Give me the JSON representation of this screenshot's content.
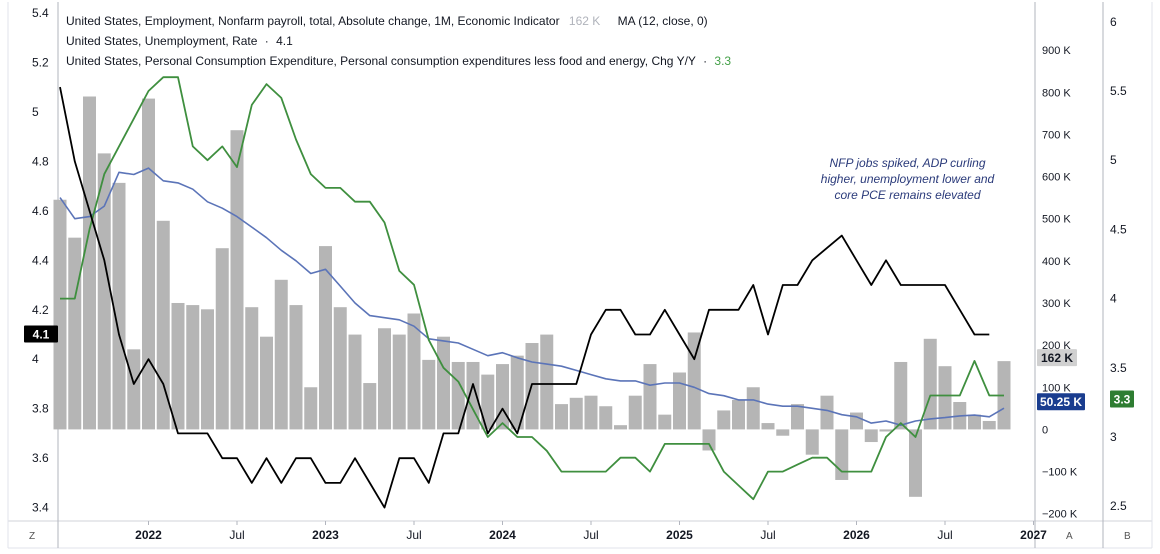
{
  "legend": {
    "nfp_label": "United States, Employment, Nonfarm payroll, total, Absolute change, 1M, Economic Indicator",
    "nfp_value": "162 K",
    "ma_label": "MA (12, close, 0)",
    "unemp_label": "United States, Unemployment, Rate",
    "unemp_value": "4.1",
    "pce_label": "United States, Personal Consumption Expenditure, Personal consumption expenditures less food and energy, Chg Y/Y",
    "pce_value": "3.3",
    "sep": "·"
  },
  "annotation": {
    "line1": "NFP jobs spiked, ADP curling",
    "line2": "higher, unemployment lower and",
    "line3": "core PCE remains elevated"
  },
  "corner": {
    "z": "Z",
    "a": "A",
    "b": "B"
  },
  "colors": {
    "nfp_bars": "#b5b5b5",
    "ma": "#5b74b8",
    "unemployment": "#000000",
    "pce": "#3f8f3f",
    "label_ma_bg": "#1a3d8f",
    "label_unemp_bg": "#000000",
    "label_pce_bg": "#2e7d32",
    "label_nfp_bg": "#d0d0d0"
  },
  "chart_data": {
    "type": "bar+line",
    "x_start": "2021-07",
    "x_ticks": [
      "2022",
      "Jul",
      "2023",
      "Jul",
      "2024",
      "Jul",
      "2025",
      "Jul",
      "2026",
      "Jul",
      "2027"
    ],
    "x_tick_months": [
      "2022-01",
      "2022-07",
      "2023-01",
      "2023-07",
      "2024-01",
      "2024-07",
      "2025-01",
      "2025-07",
      "2026-01",
      "2026-07",
      "2027-01"
    ],
    "left_axis": {
      "ticks": [
        "5.4",
        "5.2",
        "5",
        "4.8",
        "4.6",
        "4.4",
        "4.2",
        "4",
        "3.8",
        "3.6",
        "3.4"
      ],
      "range": [
        3.35,
        5.42
      ],
      "series": "Unemployment rate (%)"
    },
    "mid_axis": {
      "ticks": [
        "900 K",
        "800 K",
        "700 K",
        "600 K",
        "500 K",
        "400 K",
        "300 K",
        "200 K",
        "100 K",
        "0",
        "−100 K",
        "−200 K"
      ],
      "range": [
        -215,
        1000
      ],
      "series": "Nonfarm payroll change (K)"
    },
    "right_axis": {
      "ticks": [
        "6",
        "5.5",
        "5",
        "4.5",
        "4",
        "3.5",
        "3",
        "2.5"
      ],
      "range": [
        2.4,
        6.1
      ],
      "series": "Core PCE Y/Y (%)"
    },
    "nfp_bars": [
      {
        "month": "2021-07",
        "value": 545
      },
      {
        "month": "2021-08",
        "value": 455
      },
      {
        "month": "2021-09",
        "value": 790
      },
      {
        "month": "2021-10",
        "value": 655
      },
      {
        "month": "2021-11",
        "value": 585
      },
      {
        "month": "2021-12",
        "value": 190
      },
      {
        "month": "2022-01",
        "value": 785
      },
      {
        "month": "2022-02",
        "value": 495
      },
      {
        "month": "2022-03",
        "value": 300
      },
      {
        "month": "2022-04",
        "value": 295
      },
      {
        "month": "2022-05",
        "value": 285
      },
      {
        "month": "2022-06",
        "value": 430
      },
      {
        "month": "2022-07",
        "value": 710
      },
      {
        "month": "2022-08",
        "value": 290
      },
      {
        "month": "2022-09",
        "value": 220
      },
      {
        "month": "2022-10",
        "value": 355
      },
      {
        "month": "2022-11",
        "value": 295
      },
      {
        "month": "2022-12",
        "value": 100
      },
      {
        "month": "2023-01",
        "value": 435
      },
      {
        "month": "2023-02",
        "value": 290
      },
      {
        "month": "2023-03",
        "value": 225
      },
      {
        "month": "2023-04",
        "value": 110
      },
      {
        "month": "2023-05",
        "value": 240
      },
      {
        "month": "2023-06",
        "value": 225
      },
      {
        "month": "2023-07",
        "value": 275
      },
      {
        "month": "2023-08",
        "value": 165
      },
      {
        "month": "2023-09",
        "value": 220
      },
      {
        "month": "2023-10",
        "value": 160
      },
      {
        "month": "2023-11",
        "value": 160
      },
      {
        "month": "2023-12",
        "value": 130
      },
      {
        "month": "2024-01",
        "value": 155
      },
      {
        "month": "2024-02",
        "value": 175
      },
      {
        "month": "2024-03",
        "value": 205
      },
      {
        "month": "2024-04",
        "value": 225
      },
      {
        "month": "2024-05",
        "value": 60
      },
      {
        "month": "2024-06",
        "value": 75
      },
      {
        "month": "2024-07",
        "value": 80
      },
      {
        "month": "2024-08",
        "value": 55
      },
      {
        "month": "2024-09",
        "value": 10
      },
      {
        "month": "2024-10",
        "value": 80
      },
      {
        "month": "2024-11",
        "value": 155
      },
      {
        "month": "2024-12",
        "value": 35
      },
      {
        "month": "2025-01",
        "value": 135
      },
      {
        "month": "2025-02",
        "value": 230
      },
      {
        "month": "2025-03",
        "value": -50
      },
      {
        "month": "2025-04",
        "value": 45
      },
      {
        "month": "2025-05",
        "value": 70
      },
      {
        "month": "2025-06",
        "value": 100
      },
      {
        "month": "2025-07",
        "value": 15
      },
      {
        "month": "2025-08",
        "value": -15
      },
      {
        "month": "2025-09",
        "value": 60
      },
      {
        "month": "2025-10",
        "value": -60
      },
      {
        "month": "2025-11",
        "value": 80
      },
      {
        "month": "2025-12",
        "value": -120
      },
      {
        "month": "2026-01",
        "value": 40
      },
      {
        "month": "2026-02",
        "value": -30
      },
      {
        "month": "2026-03",
        "value": -5
      },
      {
        "month": "2026-04",
        "value": 160
      },
      {
        "month": "2026-05",
        "value": -160
      },
      {
        "month": "2026-06",
        "value": 215
      },
      {
        "month": "2026-07",
        "value": 150
      },
      {
        "month": "2026-08",
        "value": 65
      },
      {
        "month": "2026-09",
        "value": 35
      },
      {
        "month": "2026-10",
        "value": 20
      },
      {
        "month": "2026-11",
        "value": 162
      }
    ],
    "ma_line": [
      {
        "month": "2021-07",
        "value": 550
      },
      {
        "month": "2021-08",
        "value": 500
      },
      {
        "month": "2021-09",
        "value": 505
      },
      {
        "month": "2021-10",
        "value": 530
      },
      {
        "month": "2021-11",
        "value": 610
      },
      {
        "month": "2021-12",
        "value": 605
      },
      {
        "month": "2022-01",
        "value": 620
      },
      {
        "month": "2022-02",
        "value": 590
      },
      {
        "month": "2022-03",
        "value": 585
      },
      {
        "month": "2022-04",
        "value": 570
      },
      {
        "month": "2022-05",
        "value": 540
      },
      {
        "month": "2022-06",
        "value": 525
      },
      {
        "month": "2022-07",
        "value": 505
      },
      {
        "month": "2022-08",
        "value": 480
      },
      {
        "month": "2022-09",
        "value": 455
      },
      {
        "month": "2022-10",
        "value": 425
      },
      {
        "month": "2022-11",
        "value": 400
      },
      {
        "month": "2022-12",
        "value": 370
      },
      {
        "month": "2023-01",
        "value": 380
      },
      {
        "month": "2023-02",
        "value": 340
      },
      {
        "month": "2023-03",
        "value": 300
      },
      {
        "month": "2023-04",
        "value": 270
      },
      {
        "month": "2023-05",
        "value": 265
      },
      {
        "month": "2023-06",
        "value": 260
      },
      {
        "month": "2023-07",
        "value": 245
      },
      {
        "month": "2023-08",
        "value": 215
      },
      {
        "month": "2023-09",
        "value": 210
      },
      {
        "month": "2023-10",
        "value": 205
      },
      {
        "month": "2023-11",
        "value": 190
      },
      {
        "month": "2023-12",
        "value": 175
      },
      {
        "month": "2024-01",
        "value": 182
      },
      {
        "month": "2024-02",
        "value": 170
      },
      {
        "month": "2024-03",
        "value": 160
      },
      {
        "month": "2024-04",
        "value": 155
      },
      {
        "month": "2024-05",
        "value": 150
      },
      {
        "month": "2024-06",
        "value": 140
      },
      {
        "month": "2024-07",
        "value": 130
      },
      {
        "month": "2024-08",
        "value": 120
      },
      {
        "month": "2024-09",
        "value": 115
      },
      {
        "month": "2024-10",
        "value": 115
      },
      {
        "month": "2024-11",
        "value": 105
      },
      {
        "month": "2024-12",
        "value": 110
      },
      {
        "month": "2025-01",
        "value": 110
      },
      {
        "month": "2025-02",
        "value": 100
      },
      {
        "month": "2025-03",
        "value": 85
      },
      {
        "month": "2025-04",
        "value": 80
      },
      {
        "month": "2025-05",
        "value": 70
      },
      {
        "month": "2025-06",
        "value": 70
      },
      {
        "month": "2025-07",
        "value": 60
      },
      {
        "month": "2025-08",
        "value": 55
      },
      {
        "month": "2025-09",
        "value": 55
      },
      {
        "month": "2025-10",
        "value": 50
      },
      {
        "month": "2025-11",
        "value": 45
      },
      {
        "month": "2025-12",
        "value": 35
      },
      {
        "month": "2026-01",
        "value": 30
      },
      {
        "month": "2026-02",
        "value": 15
      },
      {
        "month": "2026-03",
        "value": 20
      },
      {
        "month": "2026-04",
        "value": 10
      },
      {
        "month": "2026-05",
        "value": 20
      },
      {
        "month": "2026-06",
        "value": 25
      },
      {
        "month": "2026-07",
        "value": 28
      },
      {
        "month": "2026-08",
        "value": 32
      },
      {
        "month": "2026-09",
        "value": 34
      },
      {
        "month": "2026-10",
        "value": 30
      },
      {
        "month": "2026-11",
        "value": 50.25
      }
    ],
    "ma_last_label": "50.25 K",
    "nfp_last_label": "162 K",
    "unemployment_line": [
      {
        "month": "2021-07",
        "value": 5.1
      },
      {
        "month": "2021-08",
        "value": 4.8
      },
      {
        "month": "2021-09",
        "value": 4.6
      },
      {
        "month": "2021-10",
        "value": 4.4
      },
      {
        "month": "2021-11",
        "value": 4.1
      },
      {
        "month": "2021-12",
        "value": 3.9
      },
      {
        "month": "2022-01",
        "value": 4.0
      },
      {
        "month": "2022-02",
        "value": 3.9
      },
      {
        "month": "2022-03",
        "value": 3.7
      },
      {
        "month": "2022-04",
        "value": 3.7
      },
      {
        "month": "2022-05",
        "value": 3.7
      },
      {
        "month": "2022-06",
        "value": 3.6
      },
      {
        "month": "2022-07",
        "value": 3.6
      },
      {
        "month": "2022-08",
        "value": 3.5
      },
      {
        "month": "2022-09",
        "value": 3.6
      },
      {
        "month": "2022-10",
        "value": 3.5
      },
      {
        "month": "2022-11",
        "value": 3.6
      },
      {
        "month": "2022-12",
        "value": 3.6
      },
      {
        "month": "2023-01",
        "value": 3.5
      },
      {
        "month": "2023-02",
        "value": 3.5
      },
      {
        "month": "2023-03",
        "value": 3.6
      },
      {
        "month": "2023-04",
        "value": 3.5
      },
      {
        "month": "2023-05",
        "value": 3.4
      },
      {
        "month": "2023-06",
        "value": 3.6
      },
      {
        "month": "2023-07",
        "value": 3.6
      },
      {
        "month": "2023-08",
        "value": 3.5
      },
      {
        "month": "2023-09",
        "value": 3.7
      },
      {
        "month": "2023-10",
        "value": 3.7
      },
      {
        "month": "2023-11",
        "value": 3.9
      },
      {
        "month": "2023-12",
        "value": 3.7
      },
      {
        "month": "2024-01",
        "value": 3.8
      },
      {
        "month": "2024-02",
        "value": 3.7
      },
      {
        "month": "2024-03",
        "value": 3.9
      },
      {
        "month": "2024-04",
        "value": 3.9
      },
      {
        "month": "2024-05",
        "value": 3.9
      },
      {
        "month": "2024-06",
        "value": 3.9
      },
      {
        "month": "2024-07",
        "value": 4.1
      },
      {
        "month": "2024-08",
        "value": 4.2
      },
      {
        "month": "2024-09",
        "value": 4.2
      },
      {
        "month": "2024-10",
        "value": 4.1
      },
      {
        "month": "2024-11",
        "value": 4.1
      },
      {
        "month": "2024-12",
        "value": 4.2
      },
      {
        "month": "2025-01",
        "value": 4.1
      },
      {
        "month": "2025-02",
        "value": 4.0
      },
      {
        "month": "2025-03",
        "value": 4.2
      },
      {
        "month": "2025-04",
        "value": 4.2
      },
      {
        "month": "2025-05",
        "value": 4.2
      },
      {
        "month": "2025-06",
        "value": 4.3
      },
      {
        "month": "2025-07",
        "value": 4.1
      },
      {
        "month": "2025-08",
        "value": 4.3
      },
      {
        "month": "2025-09",
        "value": 4.3
      },
      {
        "month": "2025-10",
        "value": 4.4
      },
      {
        "month": "2025-11",
        "value": 4.45
      },
      {
        "month": "2025-12",
        "value": 4.5
      },
      {
        "month": "2026-01",
        "value": 4.4
      },
      {
        "month": "2026-02",
        "value": 4.3
      },
      {
        "month": "2026-03",
        "value": 4.4
      },
      {
        "month": "2026-04",
        "value": 4.3
      },
      {
        "month": "2026-05",
        "value": 4.3
      },
      {
        "month": "2026-06",
        "value": 4.3
      },
      {
        "month": "2026-07",
        "value": 4.3
      },
      {
        "month": "2026-08",
        "value": 4.2
      },
      {
        "month": "2026-09",
        "value": 4.1
      },
      {
        "month": "2026-10",
        "value": 4.1
      }
    ],
    "pce_line": [
      {
        "month": "2021-07",
        "value": 4.0
      },
      {
        "month": "2021-08",
        "value": 4.0
      },
      {
        "month": "2021-09",
        "value": 4.5
      },
      {
        "month": "2021-10",
        "value": 4.9
      },
      {
        "month": "2021-11",
        "value": 5.1
      },
      {
        "month": "2021-12",
        "value": 5.3
      },
      {
        "month": "2022-01",
        "value": 5.5
      },
      {
        "month": "2022-02",
        "value": 5.6
      },
      {
        "month": "2022-03",
        "value": 5.6
      },
      {
        "month": "2022-04",
        "value": 5.1
      },
      {
        "month": "2022-05",
        "value": 5.0
      },
      {
        "month": "2022-06",
        "value": 5.1
      },
      {
        "month": "2022-07",
        "value": 4.95
      },
      {
        "month": "2022-08",
        "value": 5.4
      },
      {
        "month": "2022-09",
        "value": 5.55
      },
      {
        "month": "2022-10",
        "value": 5.45
      },
      {
        "month": "2022-11",
        "value": 5.15
      },
      {
        "month": "2022-12",
        "value": 4.9
      },
      {
        "month": "2023-01",
        "value": 4.8
      },
      {
        "month": "2023-02",
        "value": 4.8
      },
      {
        "month": "2023-03",
        "value": 4.7
      },
      {
        "month": "2023-04",
        "value": 4.7
      },
      {
        "month": "2023-05",
        "value": 4.55
      },
      {
        "month": "2023-06",
        "value": 4.2
      },
      {
        "month": "2023-07",
        "value": 4.1
      },
      {
        "month": "2023-08",
        "value": 3.7
      },
      {
        "month": "2023-09",
        "value": 3.5
      },
      {
        "month": "2023-10",
        "value": 3.4
      },
      {
        "month": "2023-11",
        "value": 3.2
      },
      {
        "month": "2023-12",
        "value": 3.0
      },
      {
        "month": "2024-01",
        "value": 3.1
      },
      {
        "month": "2024-02",
        "value": 3.0
      },
      {
        "month": "2024-03",
        "value": 3.0
      },
      {
        "month": "2024-04",
        "value": 2.9
      },
      {
        "month": "2024-05",
        "value": 2.75
      },
      {
        "month": "2024-06",
        "value": 2.75
      },
      {
        "month": "2024-07",
        "value": 2.75
      },
      {
        "month": "2024-08",
        "value": 2.75
      },
      {
        "month": "2024-09",
        "value": 2.85
      },
      {
        "month": "2024-10",
        "value": 2.85
      },
      {
        "month": "2024-11",
        "value": 2.75
      },
      {
        "month": "2024-12",
        "value": 2.95
      },
      {
        "month": "2025-01",
        "value": 2.95
      },
      {
        "month": "2025-02",
        "value": 2.95
      },
      {
        "month": "2025-03",
        "value": 2.95
      },
      {
        "month": "2025-04",
        "value": 2.75
      },
      {
        "month": "2025-05",
        "value": 2.65
      },
      {
        "month": "2025-06",
        "value": 2.55
      },
      {
        "month": "2025-07",
        "value": 2.75
      },
      {
        "month": "2025-08",
        "value": 2.75
      },
      {
        "month": "2025-09",
        "value": 2.8
      },
      {
        "month": "2025-10",
        "value": 2.85
      },
      {
        "month": "2025-11",
        "value": 2.85
      },
      {
        "month": "2025-12",
        "value": 2.75
      },
      {
        "month": "2026-01",
        "value": 2.75
      },
      {
        "month": "2026-02",
        "value": 2.75
      },
      {
        "month": "2026-03",
        "value": 3.0
      },
      {
        "month": "2026-04",
        "value": 3.1
      },
      {
        "month": "2026-05",
        "value": 3.0
      },
      {
        "month": "2026-06",
        "value": 3.3
      },
      {
        "month": "2026-07",
        "value": 3.3
      },
      {
        "month": "2026-08",
        "value": 3.3
      },
      {
        "month": "2026-09",
        "value": 3.55
      },
      {
        "month": "2026-10",
        "value": 3.3
      },
      {
        "month": "2026-11",
        "value": 3.3
      }
    ],
    "unemp_last_label": "4.1",
    "pce_last_label": "3.3"
  }
}
